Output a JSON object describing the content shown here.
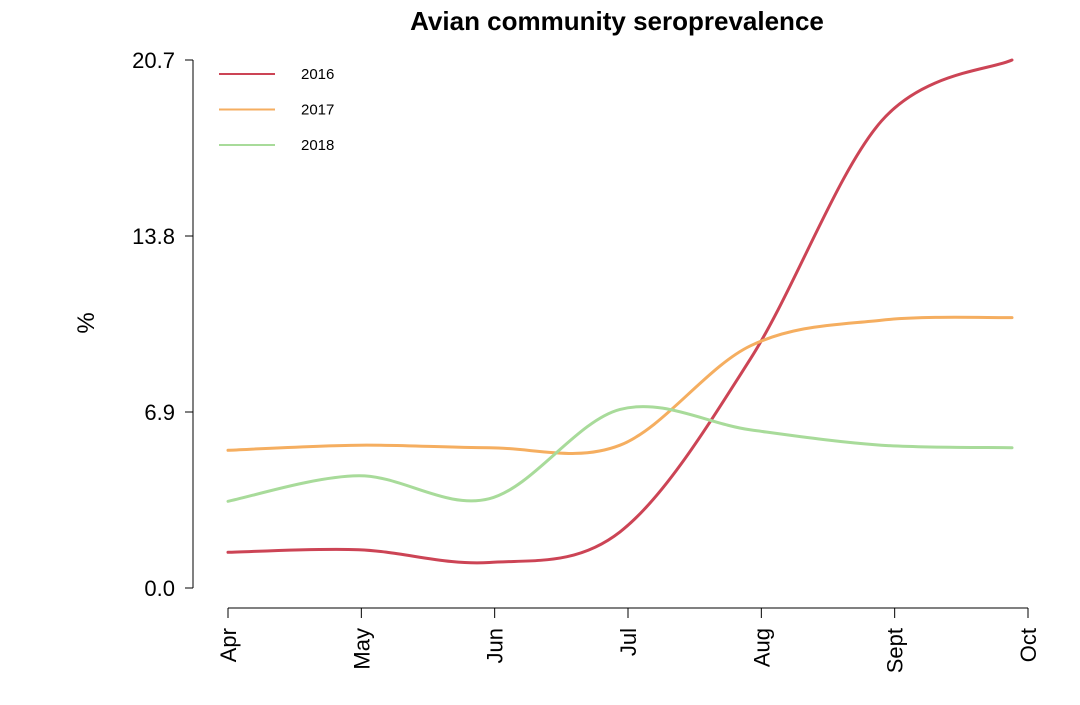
{
  "chart_data": {
    "type": "line",
    "title": "Avian community seroprevalence",
    "xlabel": "",
    "ylabel": "%",
    "x": [
      "Apr",
      "May",
      "Jun",
      "Jul",
      "Aug",
      "Sept",
      "Oct"
    ],
    "ylim": [
      0,
      20.7
    ],
    "yticks": [
      "0.0",
      "6.9",
      "13.8",
      "20.7"
    ],
    "legend_position": "top-left",
    "grid": false,
    "series": [
      {
        "name": "2016",
        "color": "#CC4455",
        "values": [
          1.4,
          1.5,
          1.0,
          2.2,
          9.0,
          18.3,
          20.7
        ]
      },
      {
        "name": "2017",
        "color": "#F5AE60",
        "values": [
          5.4,
          5.6,
          5.5,
          5.6,
          9.5,
          10.5,
          10.6
        ]
      },
      {
        "name": "2018",
        "color": "#A8DB9A",
        "values": [
          3.4,
          4.4,
          3.5,
          7.0,
          6.2,
          5.6,
          5.5
        ]
      }
    ]
  }
}
